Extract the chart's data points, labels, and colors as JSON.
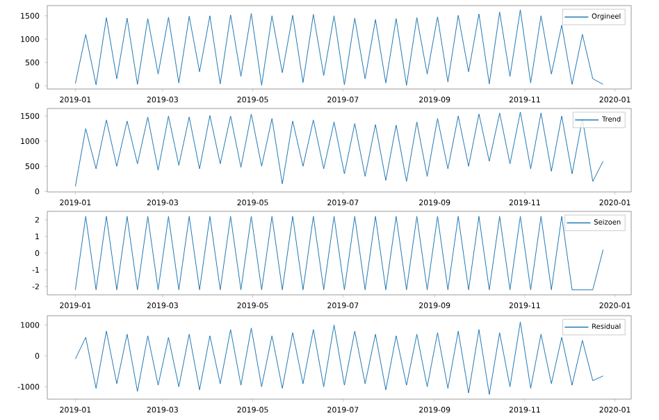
{
  "chart_data": [
    {
      "type": "line",
      "legend": "top right",
      "xlim": [
        "2018-12-13",
        "2020-01-12"
      ],
      "xticks": [
        "2019-01",
        "2019-03",
        "2019-05",
        "2019-07",
        "2019-09",
        "2019-11",
        "2020-01"
      ],
      "ylim": [
        -70,
        1720
      ],
      "yticks": [
        0,
        500,
        1000,
        1500
      ],
      "x": [
        "2019-01-01",
        "2019-01-08",
        "2019-01-15",
        "2019-01-22",
        "2019-01-29",
        "2019-02-05",
        "2019-02-12",
        "2019-02-19",
        "2019-02-26",
        "2019-03-05",
        "2019-03-12",
        "2019-03-19",
        "2019-03-26",
        "2019-04-02",
        "2019-04-09",
        "2019-04-16",
        "2019-04-23",
        "2019-04-30",
        "2019-05-07",
        "2019-05-14",
        "2019-05-21",
        "2019-05-28",
        "2019-06-04",
        "2019-06-11",
        "2019-06-18",
        "2019-06-25",
        "2019-07-02",
        "2019-07-09",
        "2019-07-16",
        "2019-07-23",
        "2019-07-30",
        "2019-08-06",
        "2019-08-13",
        "2019-08-20",
        "2019-08-27",
        "2019-09-03",
        "2019-09-10",
        "2019-09-17",
        "2019-09-24",
        "2019-10-01",
        "2019-10-08",
        "2019-10-15",
        "2019-10-22",
        "2019-10-29",
        "2019-11-05",
        "2019-11-12",
        "2019-11-19",
        "2019-11-26",
        "2019-12-03",
        "2019-12-10",
        "2019-12-17",
        "2019-12-24"
      ],
      "series": [
        {
          "name": "Orgineel",
          "color": "#1f77b4",
          "values": [
            50,
            1100,
            20,
            1460,
            150,
            1450,
            30,
            1440,
            250,
            1470,
            60,
            1490,
            300,
            1500,
            40,
            1520,
            200,
            1550,
            10,
            1500,
            280,
            1510,
            70,
            1530,
            220,
            1500,
            20,
            1450,
            150,
            1420,
            60,
            1440,
            10,
            1460,
            250,
            1480,
            80,
            1510,
            300,
            1540,
            40,
            1580,
            200,
            1630,
            60,
            1500,
            250,
            1300,
            30,
            1100,
            150,
            30
          ]
        }
      ]
    },
    {
      "type": "line",
      "legend": "top right",
      "xlim": [
        "2018-12-13",
        "2020-01-12"
      ],
      "xticks": [
        "2019-01",
        "2019-03",
        "2019-05",
        "2019-07",
        "2019-09",
        "2019-11",
        "2020-01"
      ],
      "ylim": [
        -10,
        1650
      ],
      "yticks": [
        0,
        500,
        1000,
        1500
      ],
      "x": [
        "2019-01-01",
        "2019-01-08",
        "2019-01-15",
        "2019-01-22",
        "2019-01-29",
        "2019-02-05",
        "2019-02-12",
        "2019-02-19",
        "2019-02-26",
        "2019-03-05",
        "2019-03-12",
        "2019-03-19",
        "2019-03-26",
        "2019-04-02",
        "2019-04-09",
        "2019-04-16",
        "2019-04-23",
        "2019-04-30",
        "2019-05-07",
        "2019-05-14",
        "2019-05-21",
        "2019-05-28",
        "2019-06-04",
        "2019-06-11",
        "2019-06-18",
        "2019-06-25",
        "2019-07-02",
        "2019-07-09",
        "2019-07-16",
        "2019-07-23",
        "2019-07-30",
        "2019-08-06",
        "2019-08-13",
        "2019-08-20",
        "2019-08-27",
        "2019-09-03",
        "2019-09-10",
        "2019-09-17",
        "2019-09-24",
        "2019-10-01",
        "2019-10-08",
        "2019-10-15",
        "2019-10-22",
        "2019-10-29",
        "2019-11-05",
        "2019-11-12",
        "2019-11-19",
        "2019-11-26",
        "2019-12-03",
        "2019-12-10",
        "2019-12-17",
        "2019-12-24"
      ],
      "series": [
        {
          "name": "Trend",
          "color": "#1f77b4",
          "values": [
            100,
            1250,
            450,
            1420,
            500,
            1400,
            550,
            1480,
            420,
            1500,
            520,
            1480,
            450,
            1510,
            550,
            1500,
            480,
            1540,
            500,
            1450,
            150,
            1400,
            500,
            1420,
            450,
            1380,
            350,
            1350,
            300,
            1330,
            220,
            1320,
            200,
            1380,
            300,
            1450,
            450,
            1500,
            500,
            1540,
            600,
            1560,
            550,
            1580,
            450,
            1560,
            400,
            1500,
            350,
            1450,
            200,
            600
          ]
        }
      ]
    },
    {
      "type": "line",
      "legend": "top right",
      "xlim": [
        "2018-12-13",
        "2020-01-12"
      ],
      "xticks": [
        "2019-01",
        "2019-03",
        "2019-05",
        "2019-07",
        "2019-09",
        "2019-11",
        "2020-01"
      ],
      "ylim": [
        -2.5,
        2.5
      ],
      "yticks": [
        -2,
        -1,
        0,
        1,
        2
      ],
      "x": [
        "2019-01-01",
        "2019-01-08",
        "2019-01-15",
        "2019-01-22",
        "2019-01-29",
        "2019-02-05",
        "2019-02-12",
        "2019-02-19",
        "2019-02-26",
        "2019-03-05",
        "2019-03-12",
        "2019-03-19",
        "2019-03-26",
        "2019-04-02",
        "2019-04-09",
        "2019-04-16",
        "2019-04-23",
        "2019-04-30",
        "2019-05-07",
        "2019-05-14",
        "2019-05-21",
        "2019-05-28",
        "2019-06-04",
        "2019-06-11",
        "2019-06-18",
        "2019-06-25",
        "2019-07-02",
        "2019-07-09",
        "2019-07-16",
        "2019-07-23",
        "2019-07-30",
        "2019-08-06",
        "2019-08-13",
        "2019-08-20",
        "2019-08-27",
        "2019-09-03",
        "2019-09-10",
        "2019-09-17",
        "2019-09-24",
        "2019-10-01",
        "2019-10-08",
        "2019-10-15",
        "2019-10-22",
        "2019-10-29",
        "2019-11-05",
        "2019-11-12",
        "2019-11-19",
        "2019-11-26",
        "2019-12-03",
        "2019-12-10",
        "2019-12-17",
        "2019-12-24"
      ],
      "series": [
        {
          "name": "Seizoen",
          "color": "#1f77b4",
          "values": [
            -2.2,
            2.2,
            -2.2,
            2.2,
            -2.2,
            2.2,
            -2.2,
            2.2,
            -2.2,
            2.2,
            -2.2,
            2.2,
            -2.2,
            2.2,
            -2.2,
            2.2,
            -2.2,
            2.2,
            -2.2,
            2.2,
            -2.2,
            2.2,
            -2.2,
            2.2,
            -2.2,
            2.2,
            -2.2,
            2.2,
            -2.2,
            2.2,
            -2.2,
            2.2,
            -2.2,
            2.2,
            -2.2,
            2.2,
            -2.2,
            2.2,
            -2.2,
            2.2,
            -2.2,
            2.2,
            -2.2,
            2.2,
            -2.2,
            2.2,
            -2.2,
            2.2,
            -2.2,
            null,
            -2.2,
            0.2
          ]
        }
      ]
    },
    {
      "type": "line",
      "legend": "top right",
      "xlim": [
        "2018-12-13",
        "2020-01-12"
      ],
      "xticks": [
        "2019-01",
        "2019-03",
        "2019-05",
        "2019-07",
        "2019-09",
        "2019-11",
        "2020-01"
      ],
      "ylim": [
        -1400,
        1300
      ],
      "yticks": [
        -1000,
        0,
        1000
      ],
      "x": [
        "2019-01-01",
        "2019-01-08",
        "2019-01-15",
        "2019-01-22",
        "2019-01-29",
        "2019-02-05",
        "2019-02-12",
        "2019-02-19",
        "2019-02-26",
        "2019-03-05",
        "2019-03-12",
        "2019-03-19",
        "2019-03-26",
        "2019-04-02",
        "2019-04-09",
        "2019-04-16",
        "2019-04-23",
        "2019-04-30",
        "2019-05-07",
        "2019-05-14",
        "2019-05-21",
        "2019-05-28",
        "2019-06-04",
        "2019-06-11",
        "2019-06-18",
        "2019-06-25",
        "2019-07-02",
        "2019-07-09",
        "2019-07-16",
        "2019-07-23",
        "2019-07-30",
        "2019-08-06",
        "2019-08-13",
        "2019-08-20",
        "2019-08-27",
        "2019-09-03",
        "2019-09-10",
        "2019-09-17",
        "2019-09-24",
        "2019-10-01",
        "2019-10-08",
        "2019-10-15",
        "2019-10-22",
        "2019-10-29",
        "2019-11-05",
        "2019-11-12",
        "2019-11-19",
        "2019-11-26",
        "2019-12-03",
        "2019-12-10",
        "2019-12-17",
        "2019-12-24"
      ],
      "series": [
        {
          "name": "Residual",
          "color": "#1f77b4",
          "values": [
            -100,
            600,
            -1050,
            800,
            -900,
            700,
            -1150,
            650,
            -950,
            600,
            -1000,
            700,
            -1100,
            650,
            -900,
            850,
            -950,
            900,
            -1000,
            650,
            -1050,
            750,
            -900,
            850,
            -1000,
            1000,
            -950,
            800,
            -900,
            700,
            -1100,
            650,
            -950,
            700,
            -1000,
            750,
            -1050,
            800,
            -1200,
            850,
            -1250,
            750,
            -1000,
            1100,
            -1050,
            700,
            -900,
            600,
            -950,
            500,
            -800,
            -650
          ]
        }
      ]
    }
  ]
}
